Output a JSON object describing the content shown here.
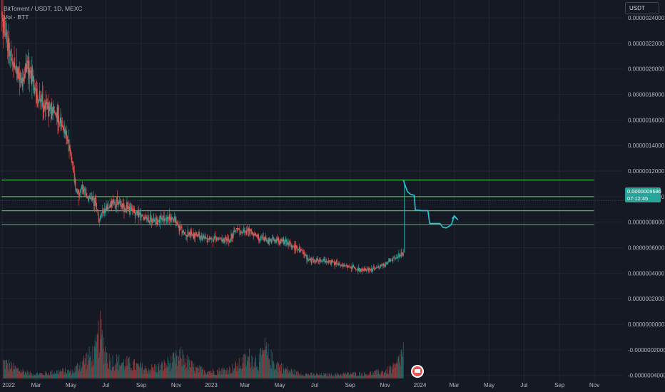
{
  "header": {
    "symbol_line": "BitTorrent / USDT, 1D, MEXC",
    "volume_line": "Vol · BTT"
  },
  "currency_button": "USDT",
  "last_price": {
    "value": "0.0000009686",
    "countdown": "07:12:45",
    "color": "#26a69a"
  },
  "colors": {
    "up": "#26a69a",
    "down": "#ef5350",
    "lines": "#4caf50",
    "projection": "#26c6da",
    "background": "#151924",
    "grid": "#232632"
  },
  "chart_data": {
    "type": "candlestick",
    "symbol": "BitTorrent / USDT",
    "interval": "1D",
    "exchange": "MEXC",
    "y_ticks": [
      "0.0000024000",
      "0.0000022000",
      "0.0000020000",
      "0.0000018000",
      "0.0000016000",
      "0.0000014000",
      "0.0000012000",
      "0.0000010000",
      "0.0000008000",
      "0.0000006000",
      "0.0000004000",
      "0.0000002000",
      "0.0000000000",
      "-0.0000002000",
      "-0.0000004000"
    ],
    "y_tick_values": [
      24,
      22,
      20,
      18,
      16,
      14,
      12,
      10,
      8,
      6,
      4,
      2,
      0,
      -2,
      -4
    ],
    "y_unit_scale": 1e-07,
    "ylim": [
      -5.3,
      25.4
    ],
    "x_ticks": [
      "2022",
      "Mar",
      "May",
      "Jul",
      "Sep",
      "Nov",
      "2023",
      "Mar",
      "May",
      "Jul",
      "Sep",
      "Nov",
      "2024",
      "Mar",
      "May",
      "Jul",
      "Sep",
      "Nov"
    ],
    "x_tick_dates": [
      "2022-01-01",
      "2022-03-01",
      "2022-05-01",
      "2022-07-01",
      "2022-09-01",
      "2022-11-01",
      "2023-01-01",
      "2023-03-01",
      "2023-05-01",
      "2023-07-01",
      "2023-09-01",
      "2023-11-01",
      "2024-01-01",
      "2024-03-01",
      "2024-05-01",
      "2024-07-01",
      "2024-09-01",
      "2024-11-01"
    ],
    "xlim": [
      "2021-12-28",
      "2024-12-22"
    ],
    "price_path_dates": [
      "2021-12-31",
      "2022-01-10",
      "2022-01-20",
      "2022-02-05",
      "2022-02-15",
      "2022-03-01",
      "2022-03-20",
      "2022-04-05",
      "2022-04-15",
      "2022-04-28",
      "2022-05-05",
      "2022-05-10",
      "2022-05-20",
      "2022-06-01",
      "2022-06-13",
      "2022-06-18",
      "2022-06-25",
      "2022-07-05",
      "2022-07-20",
      "2022-08-01",
      "2022-08-14",
      "2022-08-25",
      "2022-09-05",
      "2022-09-20",
      "2022-10-05",
      "2022-10-25",
      "2022-11-08",
      "2022-11-20",
      "2022-12-10",
      "2022-12-30",
      "2023-01-15",
      "2023-02-01",
      "2023-02-15",
      "2023-03-01",
      "2023-03-10",
      "2023-03-25",
      "2023-04-10",
      "2023-04-20",
      "2023-05-10",
      "2023-05-25",
      "2023-06-10",
      "2023-06-20",
      "2023-07-10",
      "2023-08-01",
      "2023-08-20",
      "2023-09-05",
      "2023-09-20",
      "2023-10-05",
      "2023-10-25",
      "2023-11-10",
      "2023-11-25",
      "2023-12-03",
      "2023-12-05"
    ],
    "price_path_values": [
      24.5,
      22,
      20.5,
      19,
      20.5,
      18,
      17,
      16.5,
      15.5,
      14,
      12.2,
      10.3,
      10.5,
      10,
      9.6,
      8.3,
      8.6,
      9.2,
      9.6,
      9.2,
      9,
      8.7,
      8.3,
      8.1,
      8.2,
      8.3,
      7.5,
      7.0,
      6.9,
      6.7,
      6.6,
      6.6,
      7.4,
      7.2,
      7.3,
      6.8,
      6.5,
      6.6,
      6.5,
      6.1,
      5.7,
      5.1,
      5.0,
      4.9,
      4.6,
      4.5,
      4.2,
      4.3,
      4.5,
      5.0,
      5.3,
      5.6,
      11.1
    ],
    "volume": {
      "series_name": "Vol · BTT",
      "dates": [
        "2022-01-03",
        "2022-01-25",
        "2022-02-20",
        "2022-03-15",
        "2022-04-10",
        "2022-05-05",
        "2022-05-20",
        "2022-06-13",
        "2022-06-20",
        "2022-07-05",
        "2022-07-25",
        "2022-08-15",
        "2022-09-10",
        "2022-10-05",
        "2022-11-10",
        "2022-12-05",
        "2023-01-05",
        "2023-02-05",
        "2023-02-20",
        "2023-03-10",
        "2023-03-25",
        "2023-04-05",
        "2023-04-20",
        "2023-05-10",
        "2023-06-05",
        "2023-07-01",
        "2023-08-01",
        "2023-09-01",
        "2023-10-01",
        "2023-11-01",
        "2023-11-20",
        "2023-12-03"
      ],
      "values": [
        0.35,
        0.2,
        0.1,
        0.1,
        0.15,
        0.15,
        0.35,
        0.55,
        1.0,
        0.4,
        0.35,
        0.3,
        0.2,
        0.25,
        0.45,
        0.2,
        0.15,
        0.2,
        0.3,
        0.45,
        0.35,
        0.6,
        0.35,
        0.2,
        0.1,
        0.08,
        0.08,
        0.1,
        0.1,
        0.15,
        0.25,
        0.6
      ]
    },
    "horizontal_lines": [
      11.3,
      10.0,
      8.9,
      7.8
    ],
    "horizontal_lines_start": "2021-12-31",
    "horizontal_lines_end": "2024-10-31",
    "projection": {
      "dates": [
        "2023-12-03",
        "2023-12-10",
        "2023-12-15",
        "2023-12-22",
        "2023-12-24",
        "2024-01-05",
        "2024-01-15",
        "2024-01-18",
        "2024-01-20",
        "2024-02-05",
        "2024-02-10",
        "2024-02-16",
        "2024-02-25",
        "2024-03-01",
        "2024-03-07"
      ],
      "values": [
        11.3,
        10.4,
        10.2,
        10.1,
        8.95,
        8.9,
        8.9,
        7.9,
        7.9,
        7.9,
        7.6,
        7.55,
        7.8,
        8.5,
        8.2
      ]
    },
    "last_price": 9.686,
    "grid": true,
    "legend": "top-left"
  }
}
